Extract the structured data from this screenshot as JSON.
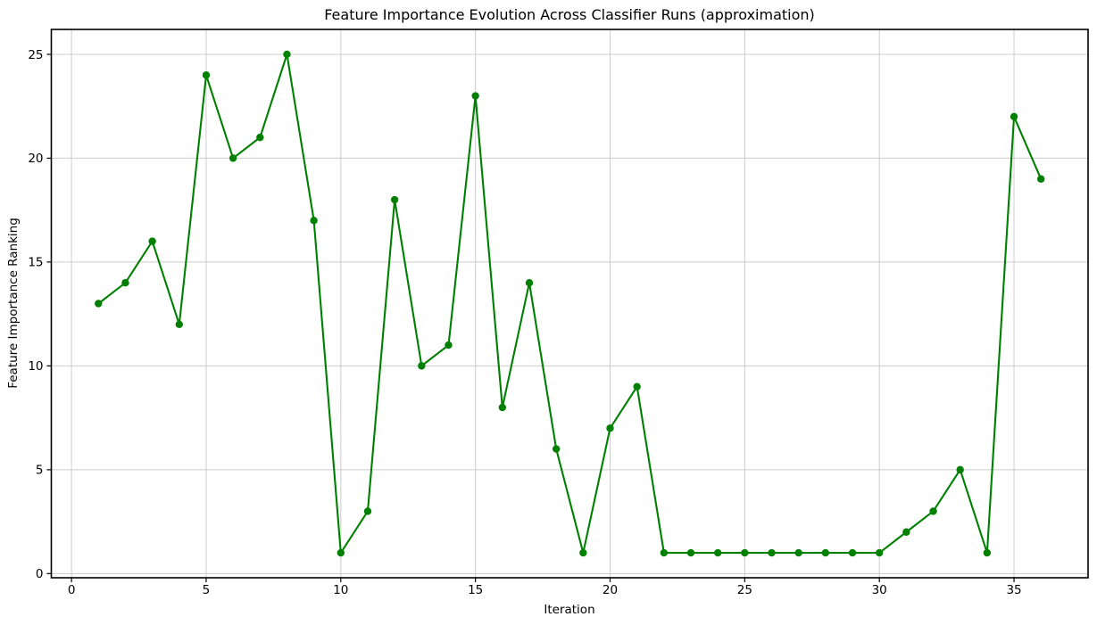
{
  "chart_data": {
    "type": "line",
    "title": "Feature Importance Evolution Across Classifier Runs (approximation)",
    "xlabel": "Iteration",
    "ylabel": "Feature Importance Ranking",
    "x": [
      1,
      2,
      3,
      4,
      5,
      6,
      7,
      8,
      9,
      10,
      11,
      12,
      13,
      14,
      15,
      16,
      17,
      18,
      19,
      20,
      21,
      22,
      23,
      24,
      25,
      26,
      27,
      28,
      29,
      30,
      31,
      32,
      33,
      34,
      35,
      36
    ],
    "y": [
      13,
      14,
      16,
      12,
      24,
      20,
      21,
      25,
      17,
      1,
      3,
      18,
      10,
      11,
      23,
      8,
      14,
      6,
      1,
      7,
      9,
      1,
      1,
      1,
      1,
      1,
      1,
      1,
      1,
      1,
      2,
      3,
      5,
      1,
      22,
      19
    ],
    "x_ticks": [
      0,
      5,
      10,
      15,
      20,
      25,
      30,
      35
    ],
    "y_ticks": [
      0,
      5,
      10,
      15,
      20,
      25
    ],
    "xlim": [
      -0.75,
      37.75
    ],
    "ylim": [
      -0.2,
      26.2
    ],
    "grid": true,
    "legend": "none",
    "line_color": "#008000",
    "marker": "circle",
    "marker_color": "#008000",
    "grid_color": "#cccccc",
    "spine_color": "#000000",
    "tick_label_color": "#000000",
    "background_color": "#ffffff"
  }
}
